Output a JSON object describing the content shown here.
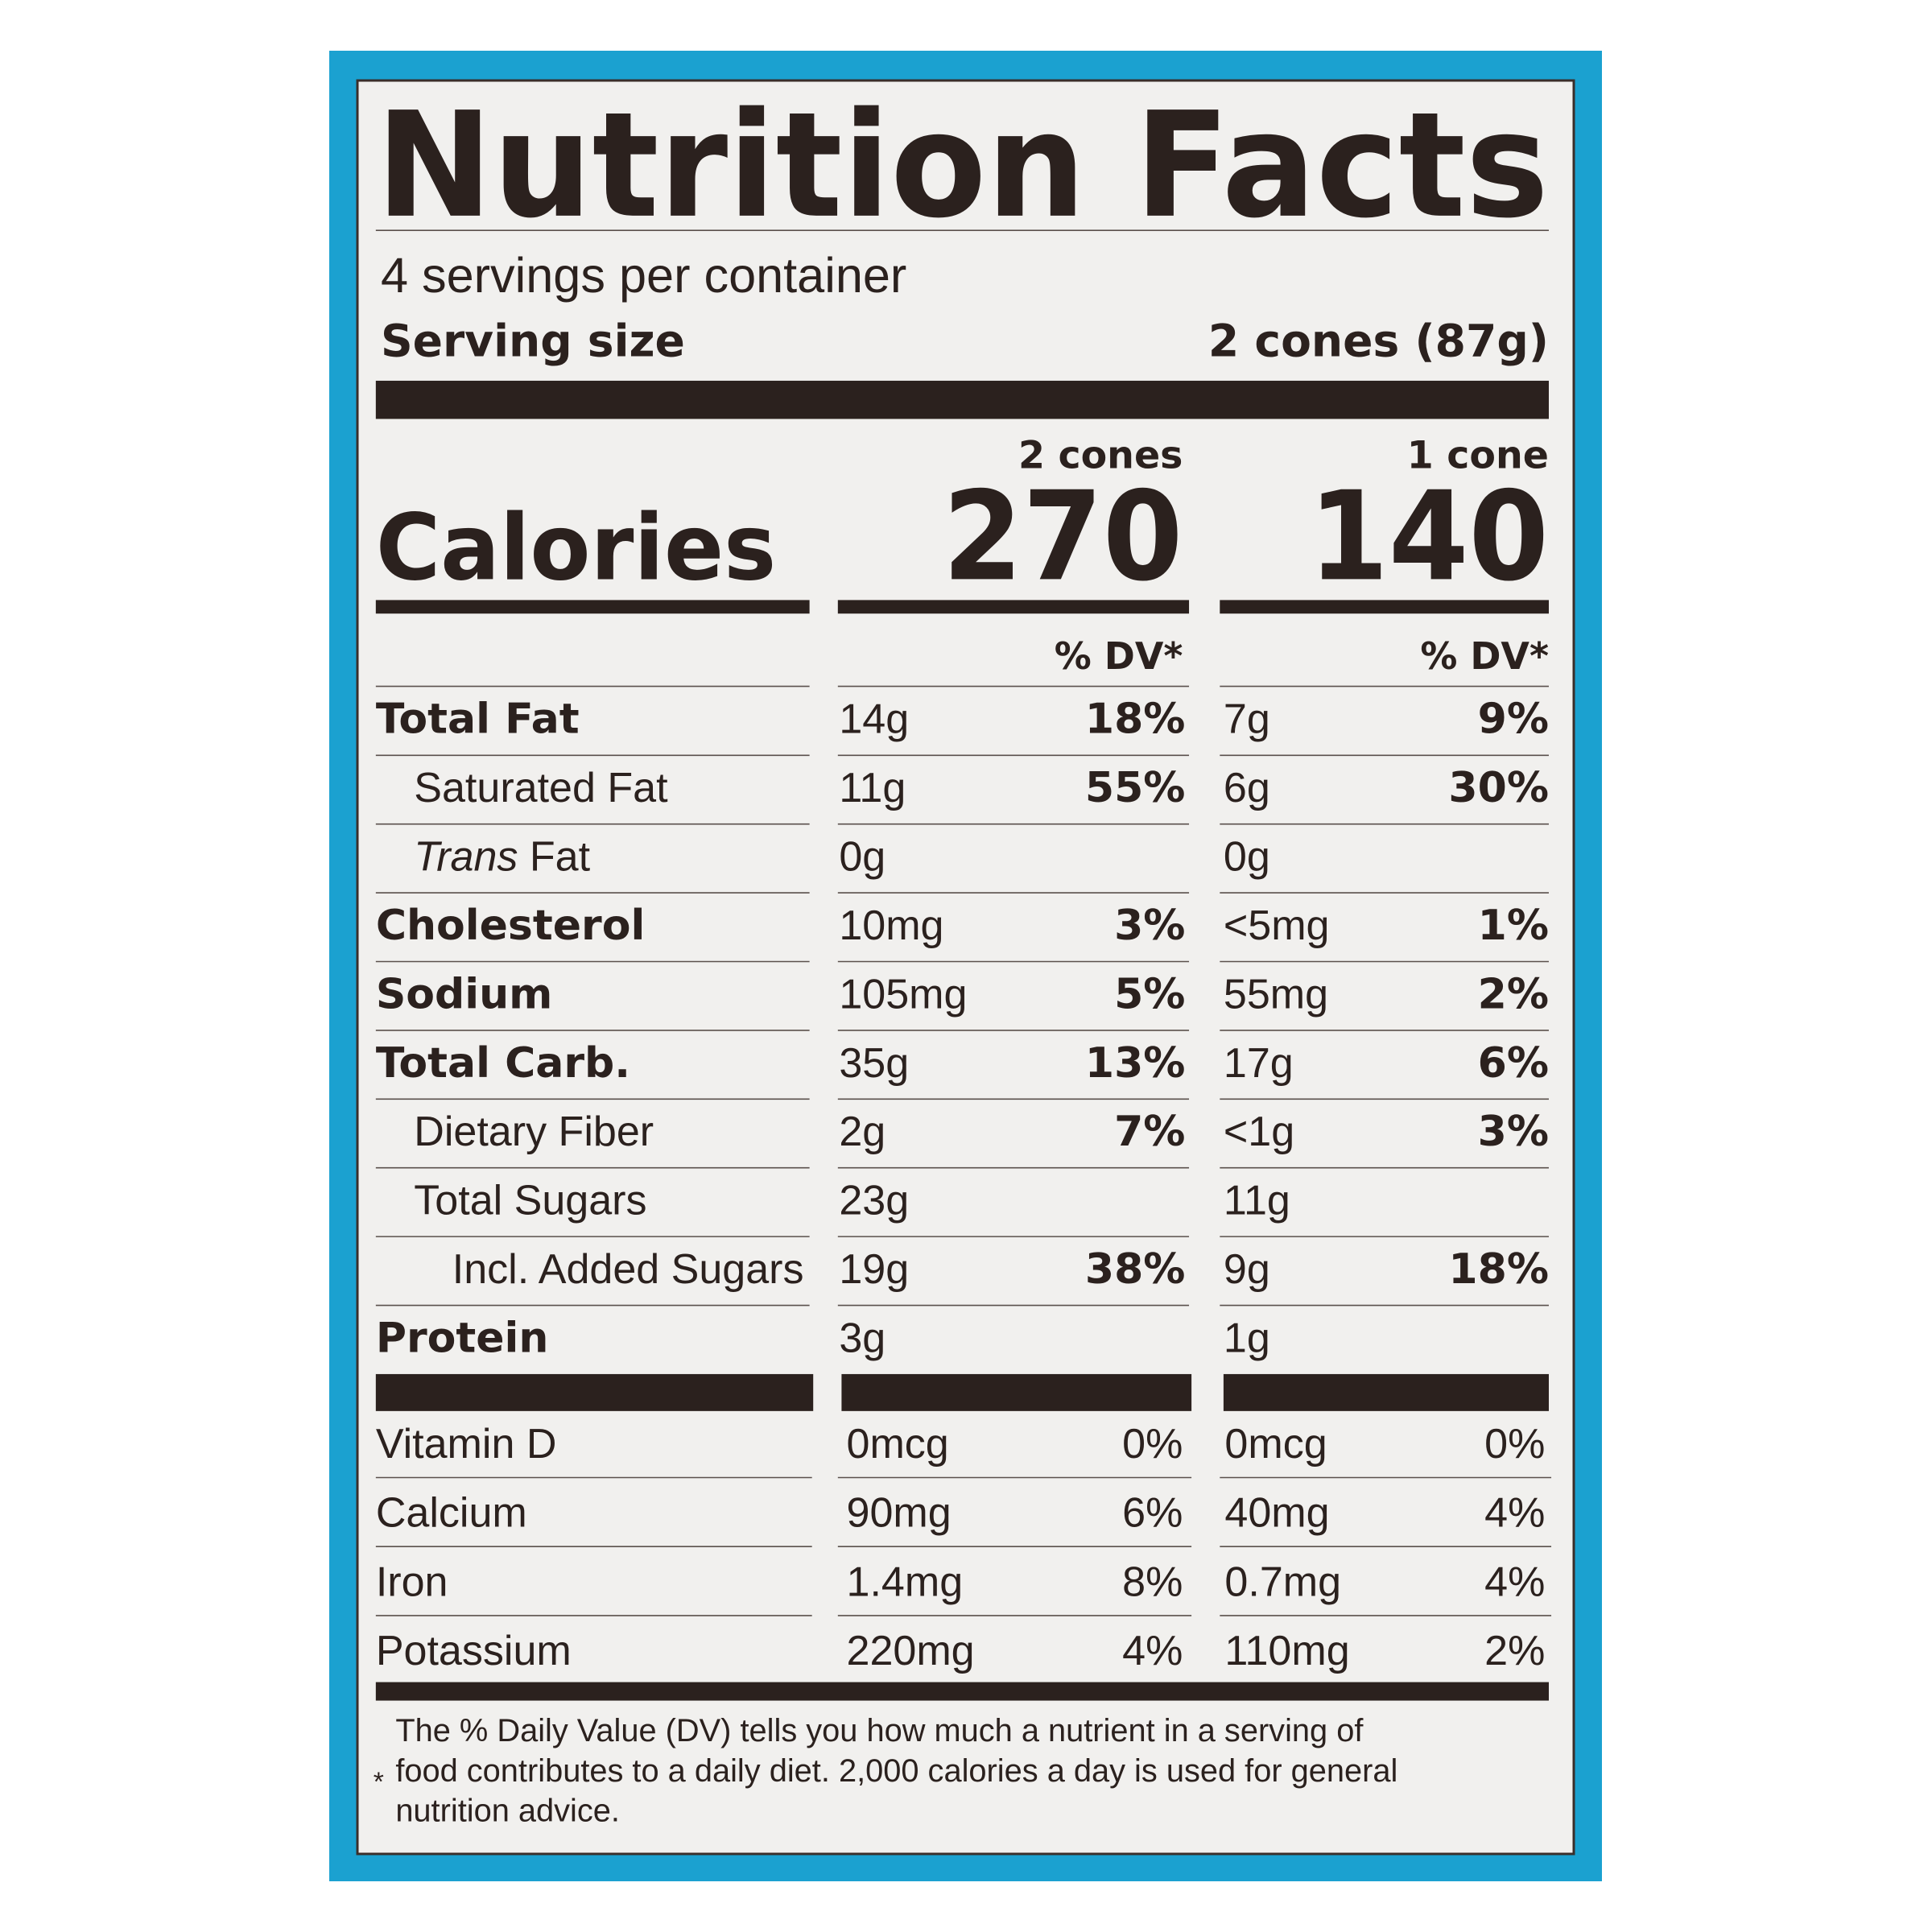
{
  "header": {
    "title": "Nutrition Facts",
    "servings": "4 servings per container",
    "serving_size_label": "Serving size",
    "serving_size_value": "2 cones (87g)"
  },
  "calories_label": "Calories",
  "columns": [
    {
      "heading": "2 cones",
      "calories": "270",
      "dv_heading": "% DV*"
    },
    {
      "heading": "1 cone",
      "calories": "140",
      "dv_heading": "% DV*"
    }
  ],
  "nutrients": [
    {
      "name": "Total Fat",
      "bold": true,
      "level": 0,
      "values": [
        {
          "amount": "14g",
          "dv": "18%"
        },
        {
          "amount": "7g",
          "dv": "9%"
        }
      ]
    },
    {
      "name": "Saturated Fat",
      "bold": false,
      "level": 1,
      "values": [
        {
          "amount": "11g",
          "dv": "55%"
        },
        {
          "amount": "6g",
          "dv": "30%"
        }
      ]
    },
    {
      "name_italic": "Trans",
      "name": " Fat",
      "bold": false,
      "level": 1,
      "values": [
        {
          "amount": "0g"
        },
        {
          "amount": "0g"
        }
      ]
    },
    {
      "name": "Cholesterol",
      "bold": true,
      "level": 0,
      "values": [
        {
          "amount": "10mg",
          "dv": "3%"
        },
        {
          "amount": "<5mg",
          "dv": "1%"
        }
      ]
    },
    {
      "name": "Sodium",
      "bold": true,
      "level": 0,
      "values": [
        {
          "amount": "105mg",
          "dv": "5%"
        },
        {
          "amount": "55mg",
          "dv": "2%"
        }
      ]
    },
    {
      "name": "Total Carb.",
      "bold": true,
      "level": 0,
      "values": [
        {
          "amount": "35g",
          "dv": "13%"
        },
        {
          "amount": "17g",
          "dv": "6%"
        }
      ]
    },
    {
      "name": "Dietary Fiber",
      "bold": false,
      "level": 1,
      "values": [
        {
          "amount": "2g",
          "dv": "7%"
        },
        {
          "amount": "<1g",
          "dv": "3%"
        }
      ]
    },
    {
      "name": "Total Sugars",
      "bold": false,
      "level": 1,
      "values": [
        {
          "amount": "23g"
        },
        {
          "amount": "11g"
        }
      ]
    },
    {
      "name": "Incl. Added Sugars",
      "bold": false,
      "level": 2,
      "values": [
        {
          "amount": "19g",
          "dv": "38%"
        },
        {
          "amount": "9g",
          "dv": "18%"
        }
      ]
    },
    {
      "name": "Protein",
      "bold": true,
      "level": 0,
      "values": [
        {
          "amount": "3g"
        },
        {
          "amount": "1g"
        }
      ]
    }
  ],
  "micronutrients": [
    {
      "name": "Vitamin D",
      "values": [
        {
          "amount": "0mcg",
          "dv": "0%"
        },
        {
          "amount": "0mcg",
          "dv": "0%"
        }
      ]
    },
    {
      "name": "Calcium",
      "values": [
        {
          "amount": "90mg",
          "dv": "6%"
        },
        {
          "amount": "40mg",
          "dv": "4%"
        }
      ]
    },
    {
      "name": "Iron",
      "values": [
        {
          "amount": "1.4mg",
          "dv": "8%"
        },
        {
          "amount": "0.7mg",
          "dv": "4%"
        }
      ]
    },
    {
      "name": "Potassium",
      "values": [
        {
          "amount": "220mg",
          "dv": "4%"
        },
        {
          "amount": "110mg",
          "dv": "2%"
        }
      ]
    }
  ],
  "footnote": {
    "marker": "*",
    "lines": [
      "The % Daily Value (DV) tells you how much a nutrient in a serving of",
      "food contributes to a daily diet. 2,000 calories a day is used for general",
      "nutrition advice."
    ]
  }
}
